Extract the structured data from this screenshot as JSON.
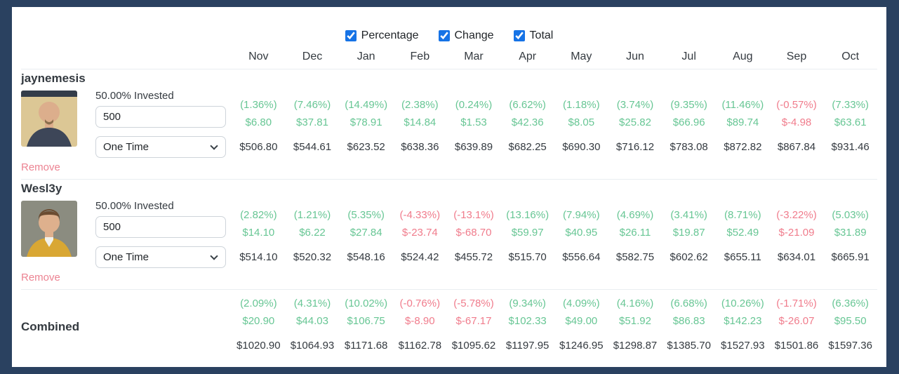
{
  "toolbar": {
    "checkboxes": [
      {
        "label": "Percentage",
        "checked": true
      },
      {
        "label": "Change",
        "checked": true
      },
      {
        "label": "Total",
        "checked": true
      }
    ]
  },
  "months": [
    "Nov",
    "Dec",
    "Jan",
    "Feb",
    "Mar",
    "Apr",
    "May",
    "Jun",
    "Jul",
    "Aug",
    "Sep",
    "Oct"
  ],
  "colors": {
    "frame_border": "#2a4160",
    "positive": "#67c694",
    "negative": "#f07c8c",
    "remove_link": "#ec8392",
    "checkbox_accent": "#1673e6",
    "heading_text": "#343a40",
    "divider": "#e9edf1"
  },
  "rows": [
    {
      "type": "user",
      "name": "jaynemesis",
      "invested_label": "50.00% Invested",
      "amount_value": "500",
      "frequency_value": "One Time",
      "remove_label": "Remove",
      "avatar": {
        "icon": "bald-man-photo-avatar",
        "bg": "#dcc795",
        "band": "#333c49",
        "skin": "#dcae8c",
        "beard": "#8a6e4c",
        "shirt": "#3d4658"
      },
      "data": {
        "percentages": [
          "(1.36%)",
          "(7.46%)",
          "(14.49%)",
          "(2.38%)",
          "(0.24%)",
          "(6.62%)",
          "(1.18%)",
          "(3.74%)",
          "(9.35%)",
          "(11.46%)",
          "(-0.57%)",
          "(7.33%)"
        ],
        "changes": [
          "$6.80",
          "$37.81",
          "$78.91",
          "$14.84",
          "$1.53",
          "$42.36",
          "$8.05",
          "$25.82",
          "$66.96",
          "$89.74",
          "$-4.98",
          "$63.61"
        ],
        "totals": [
          "$506.80",
          "$544.61",
          "$623.52",
          "$638.36",
          "$639.89",
          "$682.25",
          "$690.30",
          "$716.12",
          "$783.08",
          "$872.82",
          "$867.84",
          "$931.46"
        ]
      }
    },
    {
      "type": "user",
      "name": "Wesl3y",
      "invested_label": "50.00% Invested",
      "amount_value": "500",
      "frequency_value": "One Time",
      "remove_label": "Remove",
      "avatar": {
        "icon": "smiling-man-photo-avatar",
        "bg": "#8b8c80",
        "skin": "#deb08d",
        "hair": "#6b4c31",
        "shirt": "#d9a733",
        "collar": "#f2f1ea"
      },
      "data": {
        "percentages": [
          "(2.82%)",
          "(1.21%)",
          "(5.35%)",
          "(-4.33%)",
          "(-13.1%)",
          "(13.16%)",
          "(7.94%)",
          "(4.69%)",
          "(3.41%)",
          "(8.71%)",
          "(-3.22%)",
          "(5.03%)"
        ],
        "changes": [
          "$14.10",
          "$6.22",
          "$27.84",
          "$-23.74",
          "$-68.70",
          "$59.97",
          "$40.95",
          "$26.11",
          "$19.87",
          "$52.49",
          "$-21.09",
          "$31.89"
        ],
        "totals": [
          "$514.10",
          "$520.32",
          "$548.16",
          "$524.42",
          "$455.72",
          "$515.70",
          "$556.64",
          "$582.75",
          "$602.62",
          "$655.11",
          "$634.01",
          "$665.91"
        ]
      }
    },
    {
      "type": "combined",
      "name": "Combined",
      "data": {
        "percentages": [
          "(2.09%)",
          "(4.31%)",
          "(10.02%)",
          "(-0.76%)",
          "(-5.78%)",
          "(9.34%)",
          "(4.09%)",
          "(4.16%)",
          "(6.68%)",
          "(10.26%)",
          "(-1.71%)",
          "(6.36%)"
        ],
        "changes": [
          "$20.90",
          "$44.03",
          "$106.75",
          "$-8.90",
          "$-67.17",
          "$102.33",
          "$49.00",
          "$51.92",
          "$86.83",
          "$142.23",
          "$-26.07",
          "$95.50"
        ],
        "totals": [
          "$1020.90",
          "$1064.93",
          "$1171.68",
          "$1162.78",
          "$1095.62",
          "$1197.95",
          "$1246.95",
          "$1298.87",
          "$1385.70",
          "$1527.93",
          "$1501.86",
          "$1597.36"
        ]
      }
    }
  ]
}
